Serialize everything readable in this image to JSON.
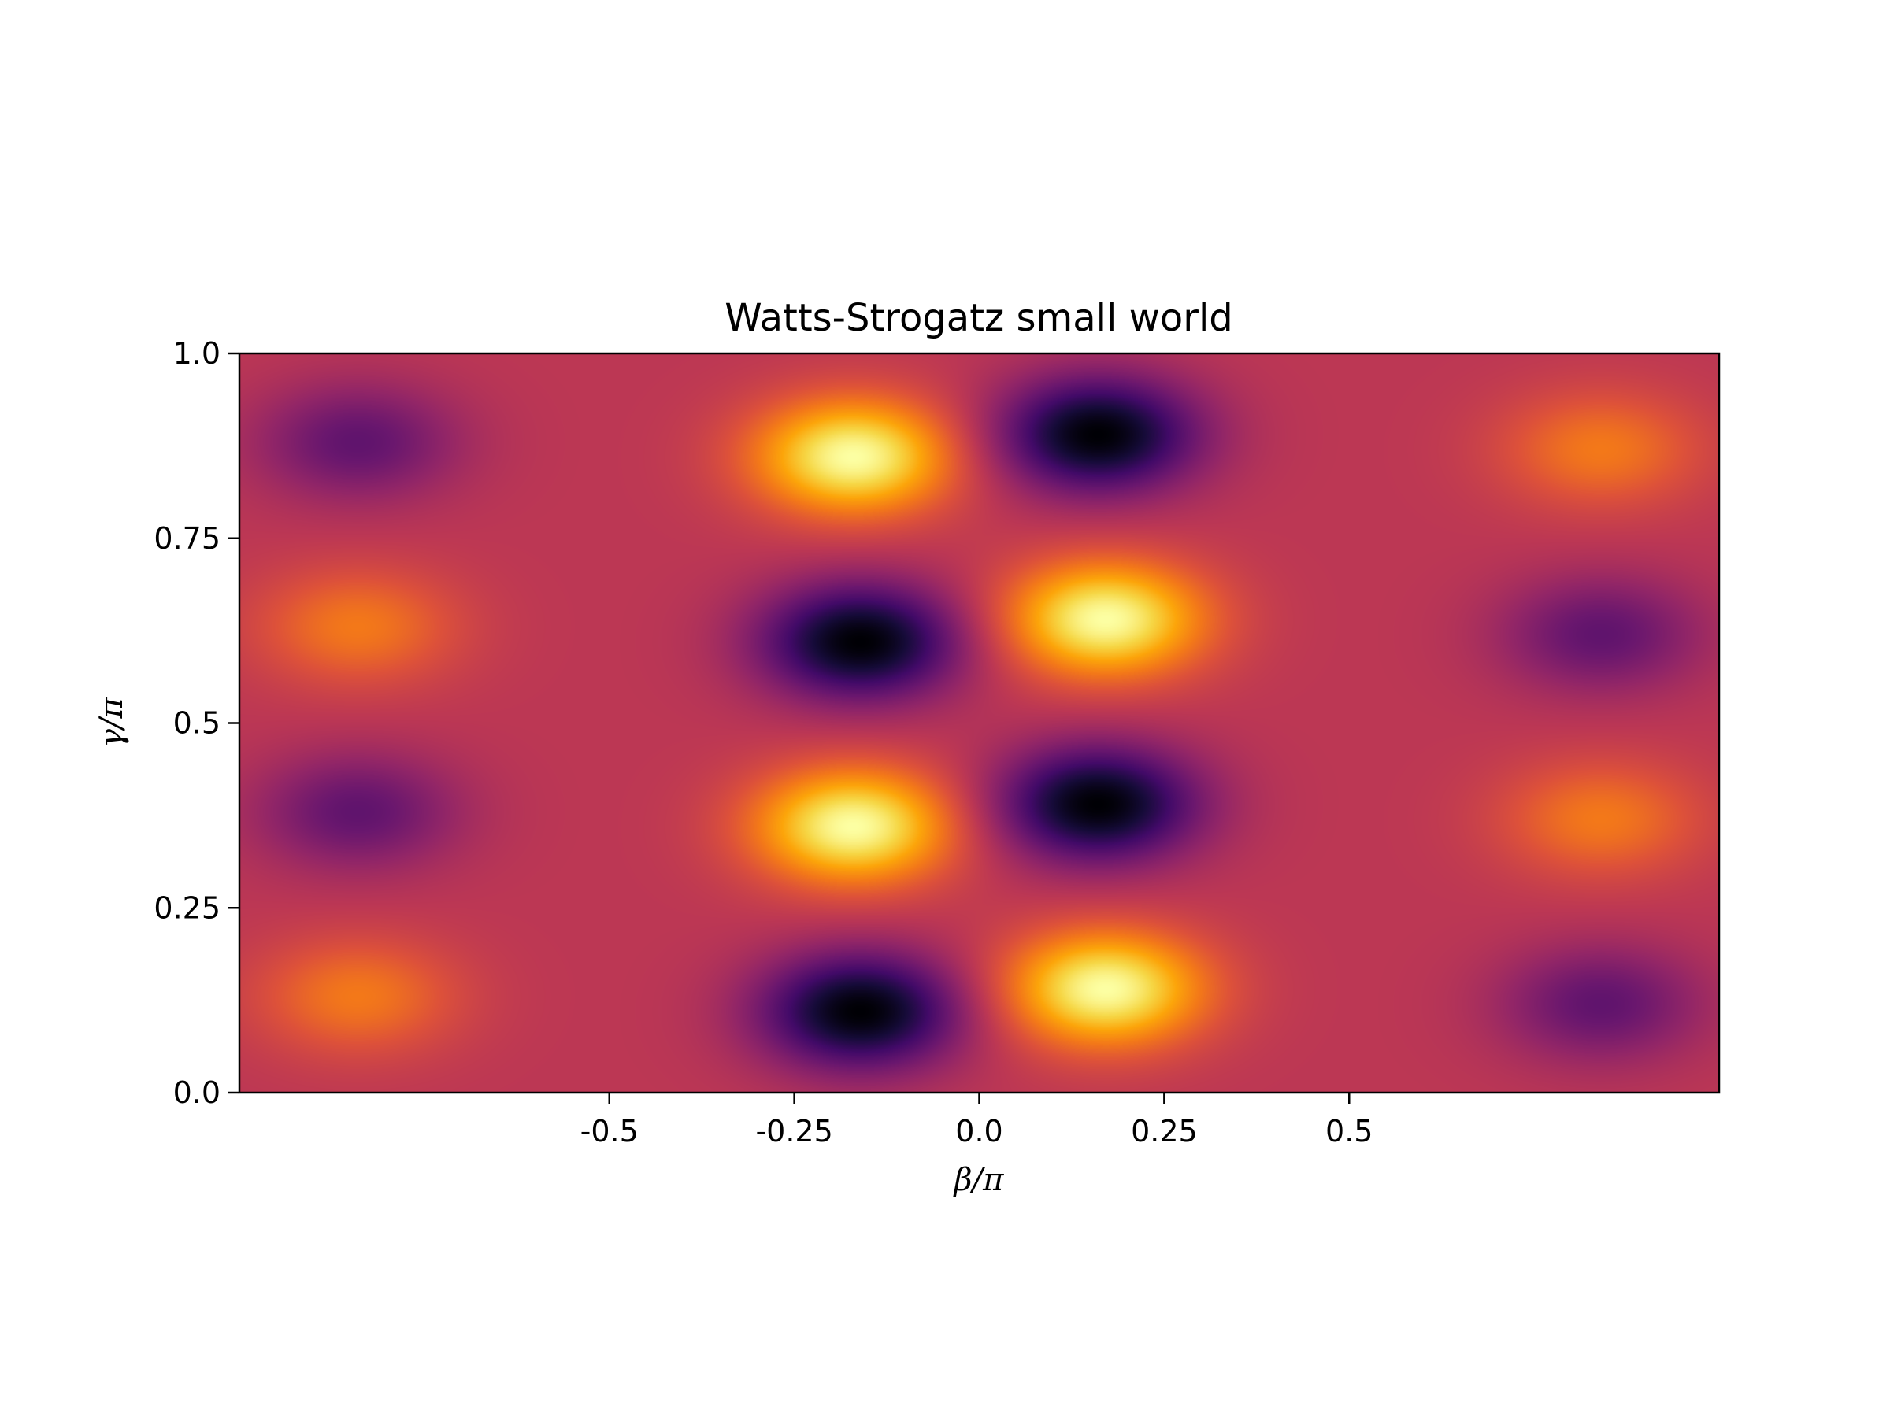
{
  "chart_data": {
    "type": "heatmap",
    "title": "Watts-Strogatz small world",
    "xlabel": "β/π",
    "ylabel": "γ/π",
    "xlim": [
      -1.0,
      1.0
    ],
    "ylim": [
      0.0,
      1.0
    ],
    "x_ticks": [
      -0.5,
      -0.25,
      0.0,
      0.25,
      0.5
    ],
    "x_tick_labels": [
      "-0.5",
      "-0.25",
      "0.0",
      "0.25",
      "0.5"
    ],
    "y_ticks": [
      0.0,
      0.25,
      0.5,
      0.75,
      1.0
    ],
    "y_tick_labels": [
      "0.0",
      "0.25",
      "0.5",
      "0.75",
      "1.0"
    ],
    "colormap": "inferno",
    "value_range": [
      -1.0,
      1.0
    ],
    "background_value": 0.0,
    "grid": false,
    "colorbar": false,
    "peaks": [
      {
        "x": -0.84,
        "y": 0.88,
        "value": -0.45
      },
      {
        "x": -0.84,
        "y": 0.63,
        "value": 0.4
      },
      {
        "x": -0.84,
        "y": 0.38,
        "value": -0.45
      },
      {
        "x": -0.84,
        "y": 0.13,
        "value": 0.4
      },
      {
        "x": -0.17,
        "y": 0.86,
        "value": 1.0
      },
      {
        "x": -0.16,
        "y": 0.61,
        "value": -1.0
      },
      {
        "x": -0.17,
        "y": 0.36,
        "value": 1.0
      },
      {
        "x": -0.16,
        "y": 0.11,
        "value": -1.0
      },
      {
        "x": 0.16,
        "y": 0.89,
        "value": -1.0
      },
      {
        "x": 0.17,
        "y": 0.64,
        "value": 1.0
      },
      {
        "x": 0.16,
        "y": 0.39,
        "value": -1.0
      },
      {
        "x": 0.17,
        "y": 0.14,
        "value": 1.0
      },
      {
        "x": 0.84,
        "y": 0.87,
        "value": 0.4
      },
      {
        "x": 0.84,
        "y": 0.62,
        "value": -0.45
      },
      {
        "x": 0.84,
        "y": 0.37,
        "value": 0.4
      },
      {
        "x": 0.84,
        "y": 0.12,
        "value": -0.45
      }
    ]
  }
}
